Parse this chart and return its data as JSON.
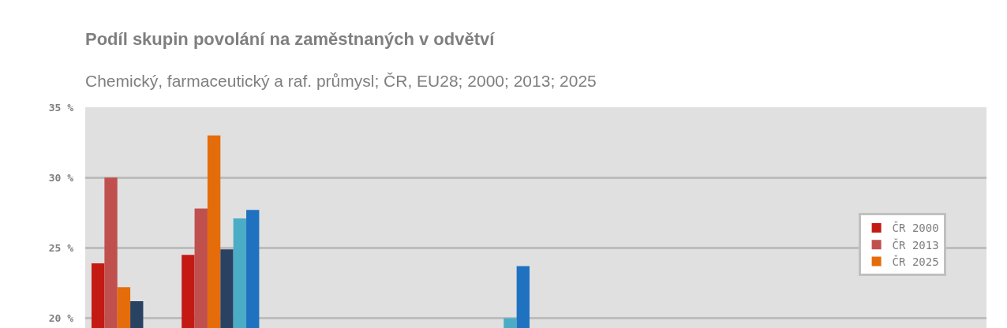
{
  "chart_data": {
    "type": "bar",
    "title": "Podíl skupin povolání na zaměstnaných v odvětví",
    "subtitle": "Chemický, farmaceutický a raf. průmysl; ČR, EU28; 2000; 2013; 2025",
    "categories": [
      null,
      null,
      null,
      null,
      null,
      null,
      null,
      null,
      null,
      null
    ],
    "series": [
      {
        "name": "ČR 2000",
        "color": "#c41a14",
        "values": [
          23.9,
          24.5,
          null,
          null,
          null,
          null,
          null,
          null,
          null,
          null
        ]
      },
      {
        "name": "ČR 2013",
        "color": "#c0504d",
        "values": [
          30.0,
          27.8,
          null,
          null,
          null,
          null,
          null,
          null,
          null,
          null
        ]
      },
      {
        "name": "ČR 2025",
        "color": "#e46c0a",
        "values": [
          22.2,
          33.0,
          null,
          null,
          null,
          null,
          null,
          null,
          null,
          null
        ]
      },
      {
        "color": "#2a4262",
        "values": [
          21.2,
          24.9,
          null,
          null,
          null,
          null,
          null,
          null,
          null,
          null
        ]
      },
      {
        "color": "#4bacc6",
        "values": [
          null,
          27.1,
          null,
          null,
          20.0,
          null,
          null,
          null,
          null,
          null
        ]
      },
      {
        "color": "#1f72c0",
        "values": [
          null,
          27.7,
          null,
          null,
          23.7,
          null,
          null,
          null,
          null,
          null
        ]
      }
    ],
    "ylim": [
      19.3,
      35
    ],
    "yticks": [
      {
        "value": 20,
        "label": "20 %"
      },
      {
        "value": 25,
        "label": "25 %"
      },
      {
        "value": 30,
        "label": "30 %"
      },
      {
        "value": 35,
        "label": "35 %"
      }
    ],
    "grid": "y",
    "legend": "right",
    "tick_labels": "y"
  }
}
